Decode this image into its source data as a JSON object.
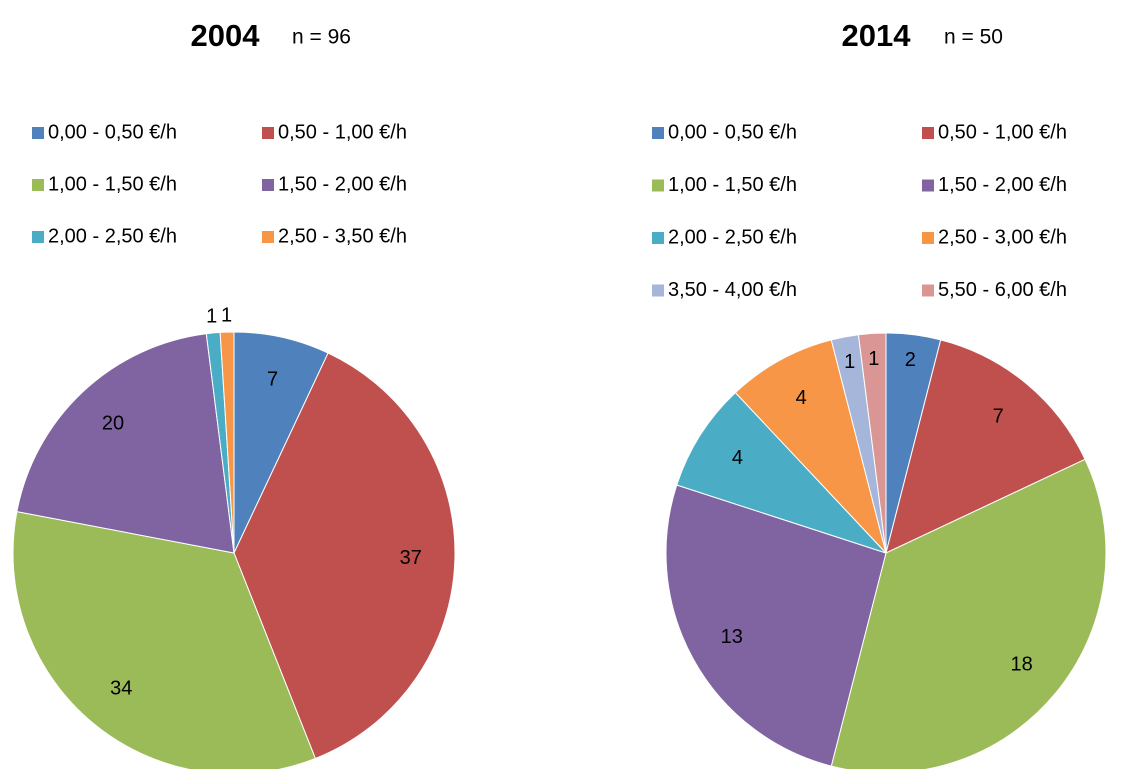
{
  "chart_data": [
    {
      "type": "pie",
      "title": "2004",
      "subtitle": "n = 96",
      "categories": [
        "0,00 - 0,50 €/h",
        "0,50 - 1,00 €/h",
        "1,00 - 1,50 €/h",
        "1,50 - 2,00 €/h",
        "2,00 - 2,50 €/h",
        "2,50 - 3,50 €/h"
      ],
      "values": [
        7,
        37,
        34,
        20,
        1,
        1
      ],
      "colors": [
        "#4f81bd",
        "#c0504d",
        "#9bbb59",
        "#8064a2",
        "#4bacc6",
        "#f79646"
      ]
    },
    {
      "type": "pie",
      "title": "2014",
      "subtitle": "n = 50",
      "categories": [
        "0,00 - 0,50 €/h",
        "0,50 - 1,00 €/h",
        "1,00 - 1,50 €/h",
        "1,50 - 2,00 €/h",
        "2,00 - 2,50 €/h",
        "2,50 - 3,00 €/h",
        "3,50 - 4,00 €/h",
        "5,50 - 6,00 €/h"
      ],
      "values": [
        2,
        7,
        18,
        13,
        4,
        4,
        1,
        1
      ],
      "colors": [
        "#4f81bd",
        "#c0504d",
        "#9bbb59",
        "#8064a2",
        "#4bacc6",
        "#f79646",
        "#a5b6da",
        "#d99694"
      ]
    }
  ]
}
